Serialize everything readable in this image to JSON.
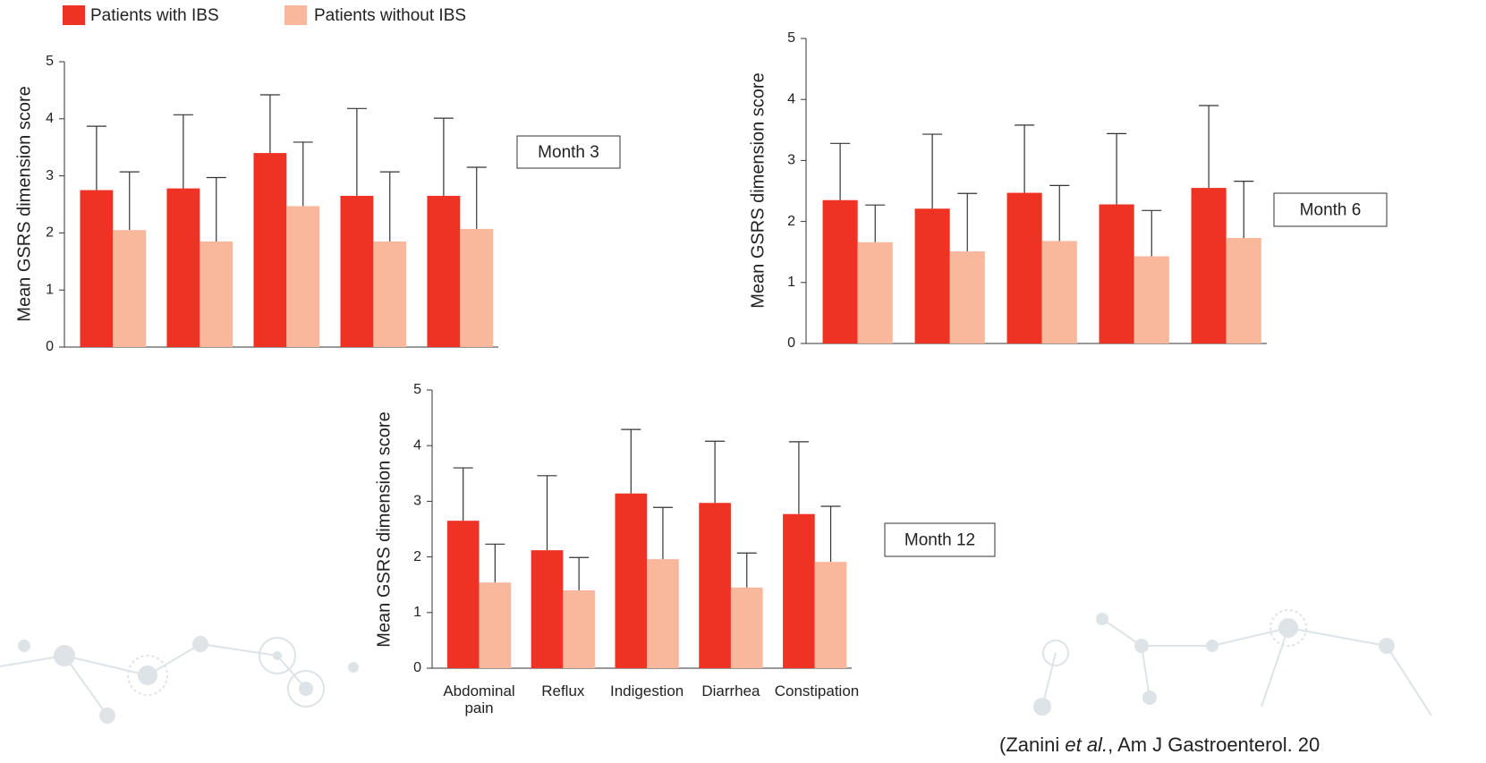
{
  "chart_data": [
    {
      "type": "bar",
      "ylabel": "Mean GSRS dimension score",
      "annotation": "Month 3",
      "categories": [
        null,
        null,
        null,
        null,
        null
      ],
      "series": [
        {
          "name": "Patients with IBS",
          "color": "#ee3224",
          "values": [
            2.75,
            2.78,
            3.4,
            2.65,
            2.65
          ],
          "errors": [
            1.12,
            1.29,
            1.02,
            1.53,
            1.36
          ]
        },
        {
          "name": "Patients without IBS",
          "color": "#f9b89c",
          "values": [
            2.05,
            1.85,
            2.47,
            1.85,
            2.07
          ],
          "errors": [
            1.02,
            1.12,
            1.12,
            1.22,
            1.08
          ]
        }
      ],
      "ylim": [
        0,
        5
      ],
      "yticks": [
        0,
        1,
        2,
        3,
        4,
        5
      ],
      "grid": false
    },
    {
      "type": "bar",
      "ylabel": "Mean GSRS dimension score",
      "annotation": "Month 6",
      "categories": [
        null,
        null,
        null,
        null,
        null
      ],
      "series": [
        {
          "color": "#ee3224",
          "values": [
            2.35,
            2.21,
            2.47,
            2.28,
            2.55
          ],
          "errors": [
            0.93,
            1.22,
            1.11,
            1.16,
            1.35
          ]
        },
        {
          "color": "#f9b89c",
          "values": [
            1.66,
            1.51,
            1.68,
            1.43,
            1.73
          ],
          "errors": [
            0.61,
            0.95,
            0.91,
            0.75,
            0.93
          ]
        }
      ],
      "ylim": [
        0,
        5
      ],
      "yticks": [
        0,
        1,
        2,
        3,
        4,
        5
      ],
      "grid": false
    },
    {
      "type": "bar",
      "ylabel": "Mean GSRS dimension score",
      "annotation": "Month 12",
      "categories": [
        "Abdominal pain",
        "Reflux",
        "Indigestion",
        "Diarrhea",
        "Constipation"
      ],
      "series": [
        {
          "color": "#ee3224",
          "values": [
            2.65,
            2.12,
            3.14,
            2.97,
            2.77
          ],
          "errors": [
            0.95,
            1.34,
            1.15,
            1.11,
            1.3
          ]
        },
        {
          "color": "#f9b89c",
          "values": [
            1.54,
            1.4,
            1.96,
            1.45,
            1.91
          ],
          "errors": [
            0.69,
            0.59,
            0.93,
            0.62,
            1.0
          ]
        }
      ],
      "ylim": [
        0,
        5
      ],
      "yticks": [
        0,
        1,
        2,
        3,
        4,
        5
      ],
      "grid": false,
      "source": [
        "(Zanini ",
        "et al.",
        ", Am J Gastroenterol. 20"
      ]
    }
  ]
}
